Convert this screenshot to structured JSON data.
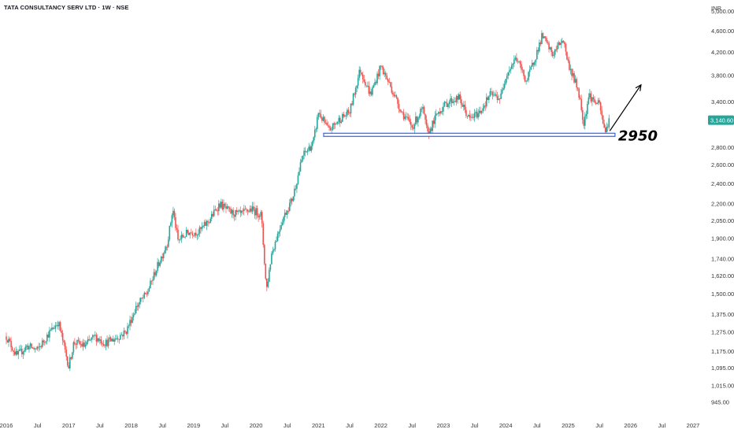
{
  "header": {
    "title": "TATA CONSULTANCY SERV LTD · 1W · NSE"
  },
  "chart_data": {
    "type": "candlestick",
    "currency_label": "INR",
    "scale": "log",
    "grid": false,
    "ylim": [
      910,
      5100
    ],
    "y_ticks": [
      "5,000.00",
      "4,600.00",
      "4,200.00",
      "3,800.00",
      "3,400.00",
      "2,800.00",
      "2,600.00",
      "2,400.00",
      "2,200.00",
      "2,050.00",
      "1,900.00",
      "1,740.00",
      "1,620.00",
      "1,500.00",
      "1,375.00",
      "1,275.00",
      "1,175.00",
      "1,095.00",
      "1,015.00",
      "945.00"
    ],
    "y_tick_values": [
      5000,
      4600,
      4200,
      3800,
      3400,
      2800,
      2600,
      2400,
      2200,
      2050,
      1900,
      1740,
      1620,
      1500,
      1375,
      1275,
      1175,
      1095,
      1015,
      945
    ],
    "x_ticks": [
      "2016",
      "Jul",
      "2017",
      "Jul",
      "2018",
      "Jul",
      "2019",
      "Jul",
      "2020",
      "Jul",
      "2021",
      "Jul",
      "2022",
      "Jul",
      "2023",
      "Jul",
      "2024",
      "Jul",
      "2025",
      "Jul",
      "2026",
      "Jul",
      "2027"
    ],
    "x_tick_dates": [
      "2016-01",
      "2016-07",
      "2017-01",
      "2017-07",
      "2018-01",
      "2018-07",
      "2019-01",
      "2019-07",
      "2020-01",
      "2020-07",
      "2021-01",
      "2021-07",
      "2022-01",
      "2022-07",
      "2023-01",
      "2023-07",
      "2024-01",
      "2024-07",
      "2025-01",
      "2025-07",
      "2026-01",
      "2026-07",
      "2027-01"
    ],
    "x_range": [
      "2016-01",
      "2027-01"
    ],
    "last_price": "3,140.60",
    "last_price_value": 3140.6,
    "colors": {
      "up": "#26a69a",
      "down": "#ef5350",
      "support": "#2962ff",
      "last_price_bg": "#26a69a"
    },
    "support_level": {
      "value": 2950,
      "label": "2950",
      "from": "2021-02",
      "to": "2025-10"
    },
    "projection_arrow": {
      "from_date": "2025-09",
      "from_value": 3000,
      "to_date": "2026-03",
      "to_value": 3650
    },
    "price_path": [
      [
        "2016-01",
        1250
      ],
      [
        "2016-03",
        1150
      ],
      [
        "2016-05",
        1200
      ],
      [
        "2016-07",
        1180
      ],
      [
        "2016-09",
        1260
      ],
      [
        "2016-11",
        1330
      ],
      [
        "2017-01",
        1100
      ],
      [
        "2017-02",
        1220
      ],
      [
        "2017-04",
        1200
      ],
      [
        "2017-06",
        1250
      ],
      [
        "2017-08",
        1215
      ],
      [
        "2017-10",
        1240
      ],
      [
        "2017-12",
        1275
      ],
      [
        "2018-02",
        1420
      ],
      [
        "2018-04",
        1500
      ],
      [
        "2018-06",
        1680
      ],
      [
        "2018-08",
        1870
      ],
      [
        "2018-09",
        2150
      ],
      [
        "2018-10",
        1880
      ],
      [
        "2018-12",
        1950
      ],
      [
        "2019-02",
        1950
      ],
      [
        "2019-04",
        2050
      ],
      [
        "2019-06",
        2200
      ],
      [
        "2019-08",
        2120
      ],
      [
        "2019-10",
        2100
      ],
      [
        "2019-12",
        2150
      ],
      [
        "2020-02",
        2100
      ],
      [
        "2020-03",
        1520
      ],
      [
        "2020-04",
        1780
      ],
      [
        "2020-06",
        2050
      ],
      [
        "2020-08",
        2250
      ],
      [
        "2020-10",
        2700
      ],
      [
        "2020-12",
        2850
      ],
      [
        "2021-01",
        3250
      ],
      [
        "2021-03",
        3000
      ],
      [
        "2021-05",
        3150
      ],
      [
        "2021-07",
        3250
      ],
      [
        "2021-09",
        3900
      ],
      [
        "2021-11",
        3500
      ],
      [
        "2022-01",
        3950
      ],
      [
        "2022-03",
        3600
      ],
      [
        "2022-05",
        3250
      ],
      [
        "2022-07",
        3050
      ],
      [
        "2022-09",
        3300
      ],
      [
        "2022-10",
        2950
      ],
      [
        "2022-12",
        3250
      ],
      [
        "2023-02",
        3400
      ],
      [
        "2023-04",
        3450
      ],
      [
        "2023-06",
        3150
      ],
      [
        "2023-08",
        3250
      ],
      [
        "2023-10",
        3500
      ],
      [
        "2023-12",
        3450
      ],
      [
        "2024-01",
        3800
      ],
      [
        "2024-03",
        4100
      ],
      [
        "2024-05",
        3700
      ],
      [
        "2024-07",
        4200
      ],
      [
        "2024-08",
        4500
      ],
      [
        "2024-10",
        4150
      ],
      [
        "2024-12",
        4450
      ],
      [
        "2025-01",
        4000
      ],
      [
        "2025-03",
        3550
      ],
      [
        "2025-04",
        3100
      ],
      [
        "2025-05",
        3500
      ],
      [
        "2025-06",
        3400
      ],
      [
        "2025-07",
        3350
      ],
      [
        "2025-08",
        3000
      ],
      [
        "2025-09",
        3140
      ]
    ]
  }
}
